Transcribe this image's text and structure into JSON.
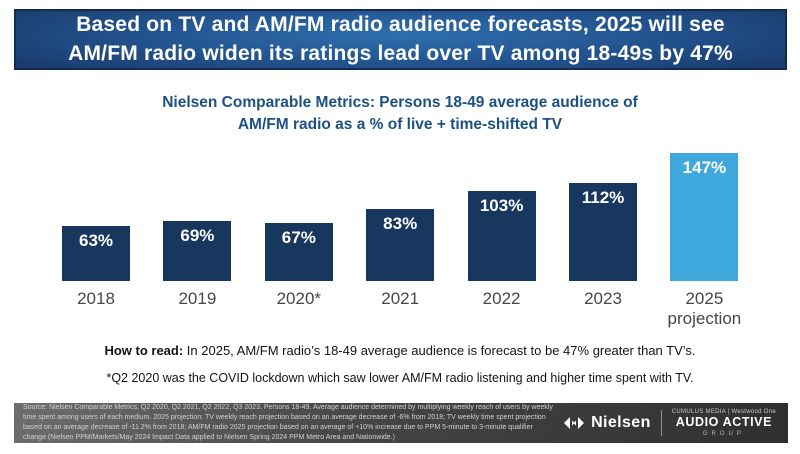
{
  "banner": {
    "line1": "Based on TV and AM/FM radio audience forecasts, 2025 will see",
    "line2": "AM/FM radio widen its ratings lead over TV among 18-49s by 47%"
  },
  "chart_data": {
    "type": "bar",
    "title": "Nielsen Comparable Metrics: Persons 18-49 average audience of AM/FM radio as a % of live + time-shifted TV",
    "title_line1": "Nielsen Comparable Metrics: Persons 18-49 average audience of",
    "title_line2": "AM/FM radio as a % of live + time-shifted TV",
    "categories": [
      "2018",
      "2019",
      "2020*",
      "2021",
      "2022",
      "2023",
      "2025"
    ],
    "category_sublabels": [
      "",
      "",
      "",
      "",
      "",
      "",
      "projection"
    ],
    "values": [
      63,
      69,
      67,
      83,
      103,
      112,
      147
    ],
    "value_labels": [
      "63%",
      "69%",
      "67%",
      "83%",
      "103%",
      "112%",
      "147%"
    ],
    "bar_color": "#17375f",
    "highlight_color": "#3fa9de",
    "highlight_index": 6,
    "ylim": [
      0,
      160
    ],
    "grid": false,
    "legend": "none"
  },
  "how_to_read": {
    "prefix": "How to read:",
    "text": " In 2025, AM/FM radio’s 18-49 average audience is forecast to be 47% greater than TV’s."
  },
  "footnote": "*Q2 2020 was the COVID lockdown which saw lower AM/FM radio listening and higher time spent with TV.",
  "footer": {
    "source": "Source: Nielsen Comparable Metrics, Q2 2020, Q2 2021, Q2 2022, Q3 2023. Persons 18-49. Average audience determined by multiplying weekly reach of users by weekly time spent among users of each medium. 2025 projection: TV weekly reach projection based on an average decrease of -6% from 2018; TV weekly time spent projection based on an average decrease of -11.2% from 2018; AM/FM radio 2025 projection based on an average of +10% increase due to PPM 5-minute to 3-minute qualifier change (Nielsen PPM/Markets/May 2024 Impact Data applied to Nielsen Spring 2024 PPM Metro Area and Nationwide.)",
    "nielsen_wordmark": "Nielsen",
    "partner_line": "CUMULUS MEDIA | Westwood One",
    "audio_active_label": "AUDIO ACTIVE",
    "group_label": "GROUP"
  }
}
